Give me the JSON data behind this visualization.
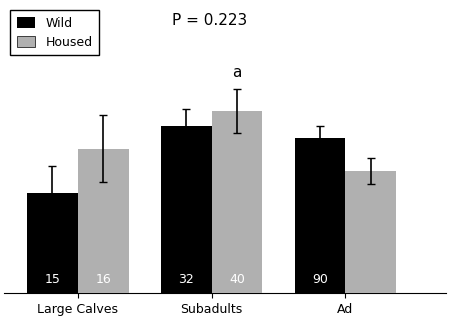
{
  "groups": [
    "Large Calves",
    "Subadults",
    "Ad"
  ],
  "wild_values": [
    3.05,
    3.35,
    3.3
  ],
  "housed_values": [
    3.25,
    3.42,
    3.15
  ],
  "wild_errors": [
    0.12,
    0.08,
    0.05
  ],
  "housed_errors": [
    0.15,
    0.1,
    0.06
  ],
  "wild_ns": [
    "15",
    "32",
    "90"
  ],
  "housed_ns": [
    "16",
    "40",
    ""
  ],
  "wild_color": "#000000",
  "housed_color": "#b0b0b0",
  "bar_width": 0.38,
  "ylim": [
    2.6,
    3.9
  ],
  "p_text": "P = 0.223",
  "annotation": "a",
  "annotation_group": 1,
  "legend_labels": [
    "Wild",
    "Housed"
  ],
  "background_color": "#ffffff",
  "capsize": 3,
  "figsize": [
    4.5,
    3.2
  ],
  "clip_right": true,
  "xlim_min": -0.55,
  "xlim_max": 2.75
}
